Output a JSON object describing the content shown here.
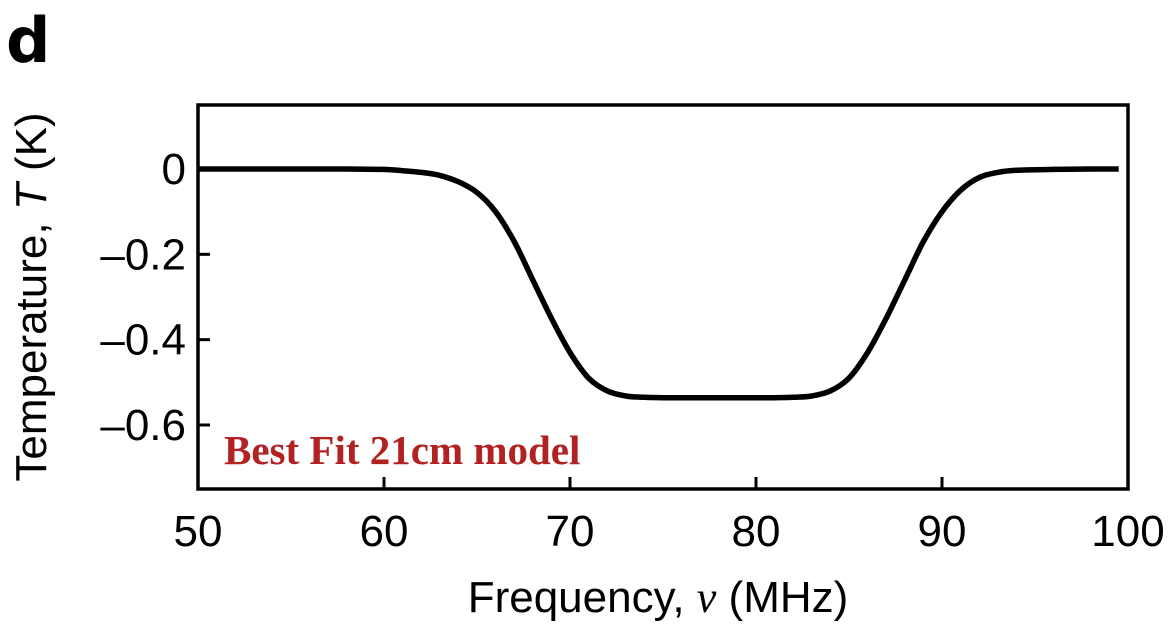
{
  "panel_label": "d",
  "chart_data": {
    "type": "line",
    "title": "",
    "xlabel_prefix": "Frequency, ",
    "xlabel_symbol": "ν",
    "xlabel_suffix": " (MHz)",
    "ylabel_prefix": "Temperature, ",
    "ylabel_symbol": "T",
    "ylabel_suffix": " (K)",
    "xlim": [
      50,
      100
    ],
    "ylim": [
      -0.75,
      0.15
    ],
    "xticks": [
      50,
      60,
      70,
      80,
      90,
      100
    ],
    "xtick_labels": [
      "50",
      "60",
      "70",
      "80",
      "90",
      "100"
    ],
    "yticks": [
      0,
      -0.2,
      -0.4,
      -0.6
    ],
    "ytick_labels": [
      "0",
      "–0.2",
      "–0.4",
      "–0.6"
    ],
    "grid": false,
    "annotation": "Best Fit 21cm model",
    "annotation_color": "#b22222",
    "line_color": "#000000",
    "series": [
      {
        "x": [
          50,
          52,
          54,
          56,
          58,
          60,
          61,
          62,
          63,
          64,
          65,
          66,
          67,
          68,
          69,
          70,
          71,
          72,
          73,
          74,
          75,
          76,
          77,
          78,
          79,
          80,
          81,
          82,
          83,
          84,
          85,
          86,
          87,
          88,
          89,
          90,
          91,
          92,
          93,
          94,
          96,
          98,
          99.5
        ],
        "y": [
          0,
          0,
          0,
          0,
          0,
          -0.001,
          -0.004,
          -0.008,
          -0.015,
          -0.03,
          -0.055,
          -0.1,
          -0.17,
          -0.26,
          -0.35,
          -0.43,
          -0.49,
          -0.52,
          -0.532,
          -0.535,
          -0.536,
          -0.536,
          -0.536,
          -0.536,
          -0.536,
          -0.536,
          -0.536,
          -0.535,
          -0.532,
          -0.52,
          -0.49,
          -0.43,
          -0.35,
          -0.26,
          -0.17,
          -0.1,
          -0.05,
          -0.02,
          -0.008,
          -0.003,
          -0.001,
          0,
          0
        ]
      }
    ]
  }
}
